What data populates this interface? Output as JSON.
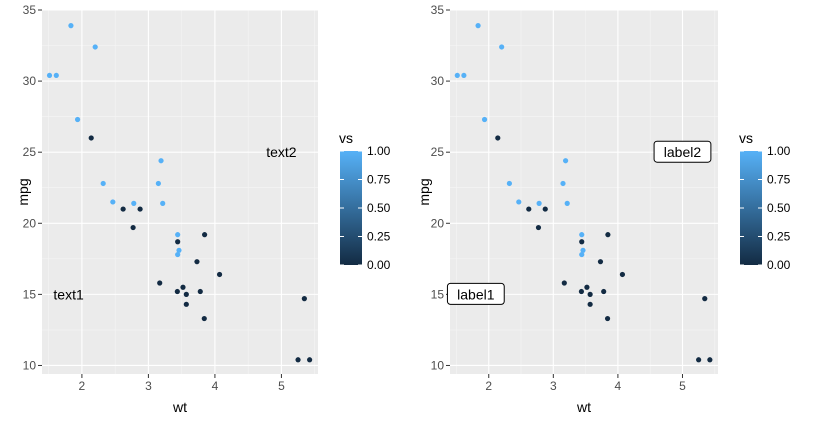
{
  "chart_data": [
    {
      "type": "scatter",
      "xlabel": "wt",
      "ylabel": "mpg",
      "xlim": [
        1.4,
        5.55
      ],
      "ylim": [
        9.4,
        35.0
      ],
      "xticks": [
        2,
        3,
        4,
        5
      ],
      "yticks": [
        10,
        15,
        20,
        25,
        30,
        35
      ],
      "grid": true,
      "color_variable": "vs",
      "points": [
        {
          "x": 2.62,
          "y": 21.0,
          "vs": 0
        },
        {
          "x": 2.875,
          "y": 21.0,
          "vs": 0
        },
        {
          "x": 2.32,
          "y": 22.8,
          "vs": 1
        },
        {
          "x": 3.215,
          "y": 21.4,
          "vs": 1
        },
        {
          "x": 3.44,
          "y": 18.7,
          "vs": 0
        },
        {
          "x": 3.46,
          "y": 18.1,
          "vs": 1
        },
        {
          "x": 3.57,
          "y": 14.3,
          "vs": 0
        },
        {
          "x": 3.19,
          "y": 24.4,
          "vs": 1
        },
        {
          "x": 3.15,
          "y": 22.8,
          "vs": 1
        },
        {
          "x": 3.44,
          "y": 19.2,
          "vs": 1
        },
        {
          "x": 3.44,
          "y": 17.8,
          "vs": 1
        },
        {
          "x": 4.07,
          "y": 16.4,
          "vs": 0
        },
        {
          "x": 3.73,
          "y": 17.3,
          "vs": 0
        },
        {
          "x": 3.78,
          "y": 15.2,
          "vs": 0
        },
        {
          "x": 5.25,
          "y": 10.4,
          "vs": 0
        },
        {
          "x": 5.424,
          "y": 10.4,
          "vs": 0
        },
        {
          "x": 5.345,
          "y": 14.7,
          "vs": 0
        },
        {
          "x": 2.2,
          "y": 32.4,
          "vs": 1
        },
        {
          "x": 1.615,
          "y": 30.4,
          "vs": 1
        },
        {
          "x": 1.835,
          "y": 33.9,
          "vs": 1
        },
        {
          "x": 2.465,
          "y": 21.5,
          "vs": 1
        },
        {
          "x": 3.52,
          "y": 15.5,
          "vs": 0
        },
        {
          "x": 3.435,
          "y": 15.2,
          "vs": 0
        },
        {
          "x": 3.84,
          "y": 13.3,
          "vs": 0
        },
        {
          "x": 3.845,
          "y": 19.2,
          "vs": 0
        },
        {
          "x": 1.935,
          "y": 27.3,
          "vs": 1
        },
        {
          "x": 2.14,
          "y": 26.0,
          "vs": 0
        },
        {
          "x": 1.513,
          "y": 30.4,
          "vs": 1
        },
        {
          "x": 3.17,
          "y": 15.8,
          "vs": 0
        },
        {
          "x": 2.77,
          "y": 19.7,
          "vs": 0
        },
        {
          "x": 3.57,
          "y": 15.0,
          "vs": 0
        },
        {
          "x": 2.78,
          "y": 21.4,
          "vs": 1
        }
      ],
      "annotations": [
        {
          "text": "text1",
          "x": 1.8,
          "y": 15.0,
          "boxed": false
        },
        {
          "text": "text2",
          "x": 5.0,
          "y": 25.0,
          "boxed": false
        }
      ],
      "legend": {
        "title": "vs",
        "placement": "right",
        "colors": [
          "#132b43",
          "#56b1f7"
        ],
        "breaks": [
          0.0,
          0.25,
          0.5,
          0.75,
          1.0
        ],
        "labels": [
          "0.00",
          "0.25",
          "0.50",
          "0.75",
          "1.00"
        ]
      }
    },
    {
      "type": "scatter",
      "xlabel": "wt",
      "ylabel": "mpg",
      "xlim": [
        1.4,
        5.55
      ],
      "ylim": [
        9.4,
        35.0
      ],
      "xticks": [
        2,
        3,
        4,
        5
      ],
      "yticks": [
        10,
        15,
        20,
        25,
        30,
        35
      ],
      "grid": true,
      "color_variable": "vs",
      "points": [
        {
          "x": 2.62,
          "y": 21.0,
          "vs": 0
        },
        {
          "x": 2.875,
          "y": 21.0,
          "vs": 0
        },
        {
          "x": 2.32,
          "y": 22.8,
          "vs": 1
        },
        {
          "x": 3.215,
          "y": 21.4,
          "vs": 1
        },
        {
          "x": 3.44,
          "y": 18.7,
          "vs": 0
        },
        {
          "x": 3.46,
          "y": 18.1,
          "vs": 1
        },
        {
          "x": 3.57,
          "y": 14.3,
          "vs": 0
        },
        {
          "x": 3.19,
          "y": 24.4,
          "vs": 1
        },
        {
          "x": 3.15,
          "y": 22.8,
          "vs": 1
        },
        {
          "x": 3.44,
          "y": 19.2,
          "vs": 1
        },
        {
          "x": 3.44,
          "y": 17.8,
          "vs": 1
        },
        {
          "x": 4.07,
          "y": 16.4,
          "vs": 0
        },
        {
          "x": 3.73,
          "y": 17.3,
          "vs": 0
        },
        {
          "x": 3.78,
          "y": 15.2,
          "vs": 0
        },
        {
          "x": 5.25,
          "y": 10.4,
          "vs": 0
        },
        {
          "x": 5.424,
          "y": 10.4,
          "vs": 0
        },
        {
          "x": 5.345,
          "y": 14.7,
          "vs": 0
        },
        {
          "x": 2.2,
          "y": 32.4,
          "vs": 1
        },
        {
          "x": 1.615,
          "y": 30.4,
          "vs": 1
        },
        {
          "x": 1.835,
          "y": 33.9,
          "vs": 1
        },
        {
          "x": 2.465,
          "y": 21.5,
          "vs": 1
        },
        {
          "x": 3.52,
          "y": 15.5,
          "vs": 0
        },
        {
          "x": 3.435,
          "y": 15.2,
          "vs": 0
        },
        {
          "x": 3.84,
          "y": 13.3,
          "vs": 0
        },
        {
          "x": 3.845,
          "y": 19.2,
          "vs": 0
        },
        {
          "x": 1.935,
          "y": 27.3,
          "vs": 1
        },
        {
          "x": 2.14,
          "y": 26.0,
          "vs": 0
        },
        {
          "x": 1.513,
          "y": 30.4,
          "vs": 1
        },
        {
          "x": 3.17,
          "y": 15.8,
          "vs": 0
        },
        {
          "x": 2.77,
          "y": 19.7,
          "vs": 0
        },
        {
          "x": 3.57,
          "y": 15.0,
          "vs": 0
        },
        {
          "x": 2.78,
          "y": 21.4,
          "vs": 1
        }
      ],
      "annotations": [
        {
          "text": "label1",
          "x": 1.8,
          "y": 15.0,
          "boxed": true
        },
        {
          "text": "label2",
          "x": 5.0,
          "y": 25.0,
          "boxed": true
        }
      ],
      "legend": {
        "title": "vs",
        "placement": "right",
        "colors": [
          "#132b43",
          "#56b1f7"
        ],
        "breaks": [
          0.0,
          0.25,
          0.5,
          0.75,
          1.0
        ],
        "labels": [
          "0.00",
          "0.25",
          "0.50",
          "0.75",
          "1.00"
        ]
      }
    }
  ]
}
